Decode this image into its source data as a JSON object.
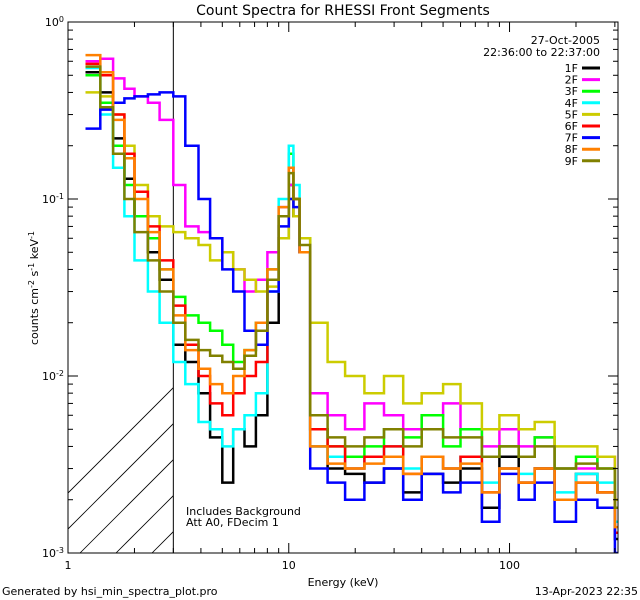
{
  "chart_data": {
    "type": "line",
    "title": "Count Spectra for RHESSI Front Segments",
    "xlabel": "Energy (keV)",
    "ylabel_main": "counts cm",
    "ylabel_sup1": "-2",
    "ylabel_s": " s",
    "ylabel_sup2": "-1",
    "ylabel_kev": " keV",
    "ylabel_sup3": "-1",
    "x_scale": "log",
    "y_scale": "log",
    "xlim": [
      1.0,
      310.0
    ],
    "ylim": [
      0.001,
      1.0
    ],
    "x_ticks": [
      {
        "value": 1,
        "label": "1"
      },
      {
        "value": 10,
        "label": "10"
      },
      {
        "value": 100,
        "label": "100"
      }
    ],
    "y_ticks": [
      {
        "value": 1,
        "base": "10",
        "exp": "0"
      },
      {
        "value": 0.1,
        "base": "10",
        "exp": "-1"
      },
      {
        "value": 0.01,
        "base": "10",
        "exp": "-2"
      },
      {
        "value": 0.001,
        "base": "10",
        "exp": "-3"
      }
    ],
    "hatched_below_keV": 3.0,
    "date": "27-Oct-2005",
    "time_range": "22:36:00 to 22:37:00",
    "annotation1": "Includes Background",
    "annotation2": "Att A0, FDecim 1",
    "footer_left": "Generated by hsi_min_spectra_plot.pro",
    "footer_right": "13-Apr-2023 22:35",
    "legend": [
      {
        "label": "1F",
        "color": "#000000"
      },
      {
        "label": "2F",
        "color": "#ff00ff"
      },
      {
        "label": "3F",
        "color": "#00ff00"
      },
      {
        "label": "4F",
        "color": "#00ffff"
      },
      {
        "label": "5F",
        "color": "#cccc00"
      },
      {
        "label": "6F",
        "color": "#ff0000"
      },
      {
        "label": "7F",
        "color": "#0000ff"
      },
      {
        "label": "8F",
        "color": "#ff8000"
      },
      {
        "label": "9F",
        "color": "#808000"
      }
    ],
    "series": [
      {
        "name": "1F",
        "color": "#000000",
        "x": [
          1.2,
          1.4,
          1.6,
          1.8,
          2.0,
          2.3,
          2.6,
          3.0,
          3.4,
          3.9,
          4.4,
          5.0,
          5.6,
          6.3,
          7.1,
          8.0,
          9.0,
          10.0,
          10.5,
          11.2,
          12.5,
          15,
          18,
          22,
          27,
          33,
          40,
          50,
          60,
          75,
          90,
          110,
          130,
          160,
          200,
          250,
          300
        ],
        "y": [
          0.52,
          0.4,
          0.22,
          0.13,
          0.08,
          0.05,
          0.035,
          0.015,
          0.012,
          0.008,
          0.0045,
          0.0025,
          0.005,
          0.004,
          0.006,
          0.02,
          0.06,
          0.12,
          0.08,
          0.05,
          0.004,
          0.003,
          0.0028,
          0.0025,
          0.003,
          0.0022,
          0.0028,
          0.0025,
          0.003,
          0.0018,
          0.0035,
          0.0025,
          0.003,
          0.002,
          0.0028,
          0.0022,
          0.0012
        ]
      },
      {
        "name": "2F",
        "color": "#ff00ff",
        "x": [
          1.2,
          1.4,
          1.6,
          1.8,
          2.0,
          2.3,
          2.6,
          3.0,
          3.4,
          3.9,
          4.4,
          5.0,
          5.6,
          6.3,
          7.1,
          8.0,
          9.0,
          10.0,
          10.5,
          11.2,
          12.5,
          15,
          18,
          22,
          27,
          33,
          40,
          50,
          60,
          75,
          90,
          110,
          130,
          160,
          200,
          250,
          300
        ],
        "y": [
          0.6,
          0.62,
          0.48,
          0.42,
          0.38,
          0.35,
          0.28,
          0.12,
          0.07,
          0.065,
          0.06,
          0.05,
          0.04,
          0.03,
          0.035,
          0.05,
          0.09,
          0.12,
          0.1,
          0.06,
          0.008,
          0.006,
          0.005,
          0.007,
          0.006,
          0.005,
          0.006,
          0.007,
          0.005,
          0.004,
          0.005,
          0.004,
          0.0045,
          0.003,
          0.003,
          0.0035,
          0.002
        ]
      },
      {
        "name": "3F",
        "color": "#00ff00",
        "x": [
          1.2,
          1.4,
          1.6,
          1.8,
          2.0,
          2.3,
          2.6,
          3.0,
          3.4,
          3.9,
          4.4,
          5.0,
          5.6,
          6.3,
          7.1,
          8.0,
          9.0,
          10.0,
          10.5,
          11.2,
          12.5,
          15,
          18,
          22,
          27,
          33,
          40,
          50,
          60,
          75,
          90,
          110,
          130,
          160,
          200,
          250,
          300
        ],
        "y": [
          0.5,
          0.35,
          0.2,
          0.12,
          0.08,
          0.06,
          0.04,
          0.028,
          0.022,
          0.02,
          0.018,
          0.015,
          0.012,
          0.014,
          0.02,
          0.04,
          0.08,
          0.18,
          0.1,
          0.06,
          0.005,
          0.004,
          0.0035,
          0.004,
          0.005,
          0.0045,
          0.006,
          0.004,
          0.005,
          0.0035,
          0.004,
          0.0035,
          0.0045,
          0.003,
          0.0035,
          0.003,
          0.0018
        ]
      },
      {
        "name": "4F",
        "color": "#00ffff",
        "x": [
          1.2,
          1.4,
          1.6,
          1.8,
          2.0,
          2.3,
          2.6,
          3.0,
          3.4,
          3.9,
          4.4,
          5.0,
          5.6,
          6.3,
          7.1,
          8.0,
          9.0,
          10.0,
          10.5,
          11.2,
          12.5,
          15,
          18,
          22,
          27,
          33,
          40,
          50,
          60,
          75,
          90,
          110,
          130,
          160,
          200,
          250,
          300
        ],
        "y": [
          0.55,
          0.3,
          0.15,
          0.08,
          0.045,
          0.03,
          0.02,
          0.012,
          0.009,
          0.0055,
          0.005,
          0.004,
          0.005,
          0.006,
          0.008,
          0.03,
          0.1,
          0.2,
          0.12,
          0.05,
          0.004,
          0.0035,
          0.003,
          0.0035,
          0.004,
          0.003,
          0.0035,
          0.003,
          0.0035,
          0.0025,
          0.003,
          0.0028,
          0.003,
          0.0022,
          0.0028,
          0.0025,
          0.0015
        ]
      },
      {
        "name": "5F",
        "color": "#cccc00",
        "x": [
          1.2,
          1.4,
          1.6,
          1.8,
          2.0,
          2.3,
          2.6,
          3.0,
          3.4,
          3.9,
          4.4,
          5.0,
          5.6,
          6.3,
          7.1,
          8.0,
          9.0,
          10.0,
          10.5,
          11.2,
          12.5,
          15,
          18,
          22,
          27,
          33,
          40,
          50,
          60,
          75,
          90,
          110,
          130,
          160,
          200,
          250,
          300
        ],
        "y": [
          0.4,
          0.38,
          0.3,
          0.2,
          0.12,
          0.08,
          0.07,
          0.065,
          0.06,
          0.055,
          0.045,
          0.05,
          0.04,
          0.035,
          0.03,
          0.032,
          0.06,
          0.1,
          0.08,
          0.06,
          0.02,
          0.012,
          0.01,
          0.008,
          0.01,
          0.007,
          0.008,
          0.009,
          0.007,
          0.005,
          0.006,
          0.005,
          0.0055,
          0.004,
          0.004,
          0.0035,
          0.002
        ]
      },
      {
        "name": "6F",
        "color": "#ff0000",
        "x": [
          1.2,
          1.4,
          1.6,
          1.8,
          2.0,
          2.3,
          2.6,
          3.0,
          3.4,
          3.9,
          4.4,
          5.0,
          5.6,
          6.3,
          7.1,
          8.0,
          9.0,
          10.0,
          10.5,
          11.2,
          12.5,
          15,
          18,
          22,
          27,
          33,
          40,
          50,
          60,
          75,
          90,
          110,
          130,
          160,
          200,
          250,
          300
        ],
        "y": [
          0.58,
          0.5,
          0.3,
          0.18,
          0.11,
          0.07,
          0.045,
          0.025,
          0.015,
          0.01,
          0.007,
          0.006,
          0.008,
          0.01,
          0.012,
          0.035,
          0.08,
          0.15,
          0.1,
          0.05,
          0.005,
          0.004,
          0.003,
          0.0035,
          0.004,
          0.0028,
          0.0035,
          0.003,
          0.0035,
          0.0022,
          0.003,
          0.0025,
          0.003,
          0.002,
          0.0025,
          0.0022,
          0.0013
        ]
      },
      {
        "name": "7F",
        "color": "#0000ff",
        "x": [
          1.2,
          1.4,
          1.6,
          1.8,
          2.0,
          2.3,
          2.6,
          3.0,
          3.4,
          3.9,
          4.4,
          5.0,
          5.6,
          6.3,
          7.1,
          8.0,
          9.0,
          10.0,
          10.5,
          11.2,
          12.5,
          15,
          18,
          22,
          27,
          33,
          40,
          50,
          60,
          75,
          90,
          110,
          130,
          160,
          200,
          250,
          300
        ],
        "y": [
          0.25,
          0.32,
          0.35,
          0.37,
          0.38,
          0.39,
          0.4,
          0.38,
          0.2,
          0.1,
          0.06,
          0.04,
          0.03,
          0.018,
          0.015,
          0.03,
          0.07,
          0.1,
          0.09,
          0.05,
          0.003,
          0.0025,
          0.002,
          0.0025,
          0.003,
          0.002,
          0.0028,
          0.0022,
          0.0025,
          0.0015,
          0.0028,
          0.002,
          0.0025,
          0.0015,
          0.002,
          0.0018,
          0.001
        ]
      },
      {
        "name": "8F",
        "color": "#ff8000",
        "x": [
          1.2,
          1.4,
          1.6,
          1.8,
          2.0,
          2.3,
          2.6,
          3.0,
          3.4,
          3.9,
          4.4,
          5.0,
          5.6,
          6.3,
          7.1,
          8.0,
          9.0,
          10.0,
          10.5,
          11.2,
          12.5,
          15,
          18,
          22,
          27,
          33,
          40,
          50,
          60,
          75,
          90,
          110,
          130,
          160,
          200,
          250,
          300
        ],
        "y": [
          0.65,
          0.52,
          0.28,
          0.17,
          0.1,
          0.065,
          0.04,
          0.022,
          0.014,
          0.011,
          0.009,
          0.008,
          0.01,
          0.014,
          0.02,
          0.04,
          0.09,
          0.15,
          0.1,
          0.05,
          0.004,
          0.0032,
          0.003,
          0.0032,
          0.0035,
          0.0028,
          0.0035,
          0.003,
          0.0032,
          0.0022,
          0.003,
          0.0025,
          0.003,
          0.002,
          0.0025,
          0.0022,
          0.0014
        ]
      },
      {
        "name": "9F",
        "color": "#808000",
        "x": [
          1.2,
          1.4,
          1.6,
          1.8,
          2.0,
          2.3,
          2.6,
          3.0,
          3.4,
          3.9,
          4.4,
          5.0,
          5.6,
          6.3,
          7.1,
          8.0,
          9.0,
          10.0,
          10.5,
          11.2,
          12.5,
          15,
          18,
          22,
          27,
          33,
          40,
          50,
          60,
          75,
          90,
          110,
          130,
          160,
          200,
          250,
          300
        ],
        "y": [
          0.56,
          0.33,
          0.18,
          0.1,
          0.065,
          0.045,
          0.03,
          0.02,
          0.016,
          0.014,
          0.013,
          0.012,
          0.011,
          0.013,
          0.018,
          0.035,
          0.08,
          0.14,
          0.1,
          0.055,
          0.006,
          0.0045,
          0.004,
          0.0045,
          0.005,
          0.004,
          0.005,
          0.0045,
          0.0045,
          0.0035,
          0.004,
          0.0035,
          0.004,
          0.003,
          0.0032,
          0.003,
          0.0018
        ]
      }
    ]
  }
}
